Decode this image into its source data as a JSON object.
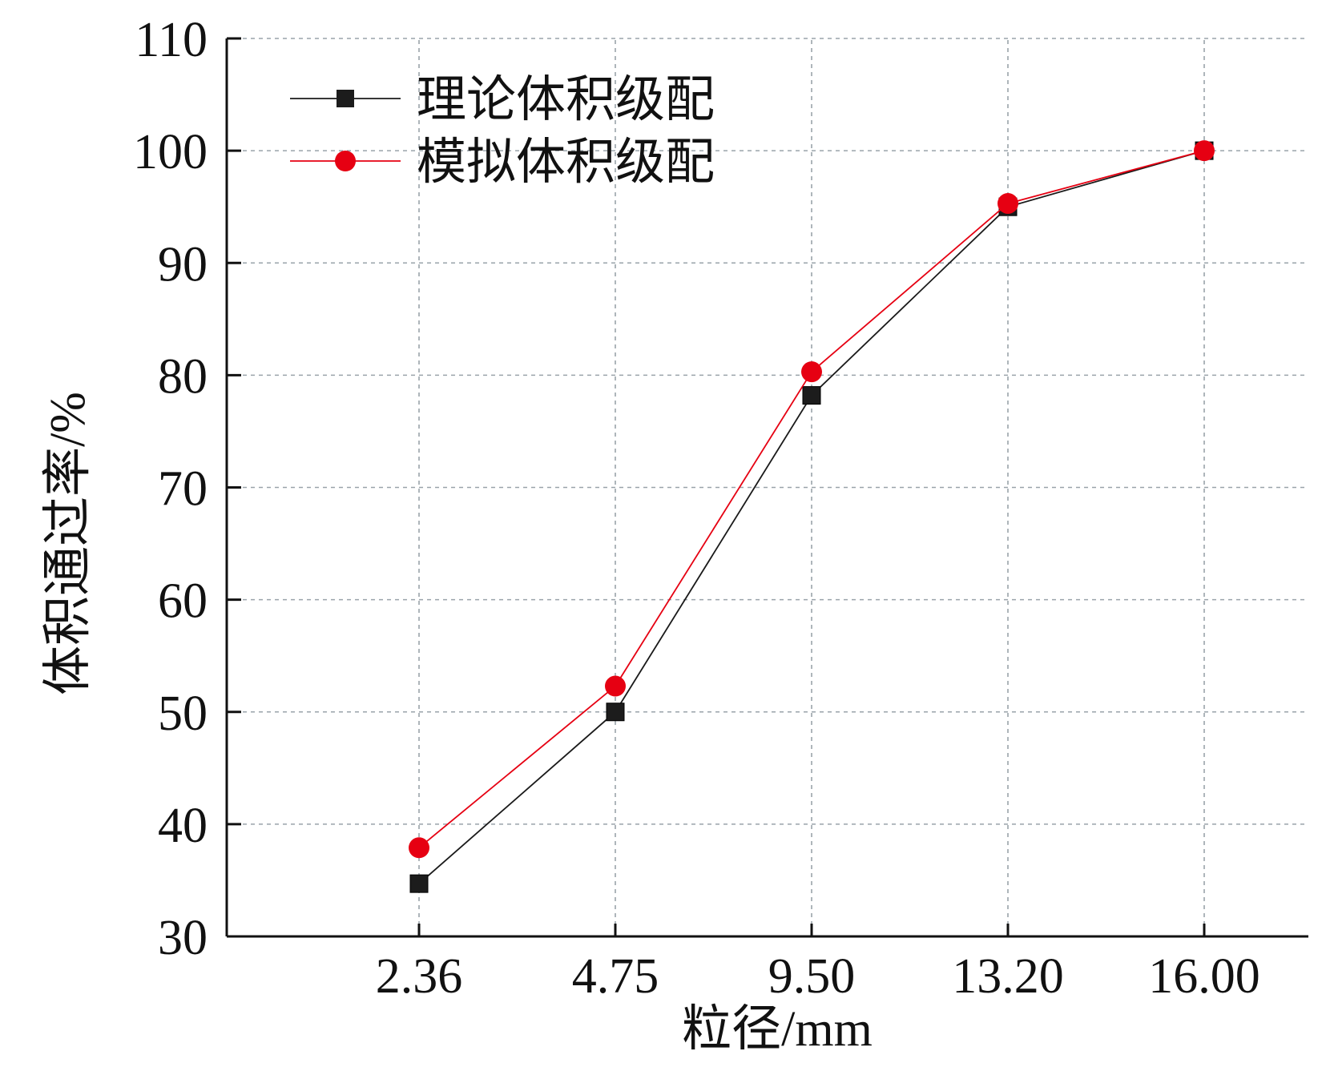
{
  "chart_data": {
    "type": "line",
    "title": "",
    "xlabel": "粒径/mm",
    "ylabel": "体积通过率/%",
    "categories": [
      "2.36",
      "4.75",
      "9.50",
      "13.20",
      "16.00"
    ],
    "ylim": [
      30,
      110
    ],
    "yticks": [
      "30",
      "40",
      "50",
      "60",
      "70",
      "80",
      "90",
      "100",
      "110"
    ],
    "grid": true,
    "legend_position": "top-left",
    "series": [
      {
        "name": "理论体积级配",
        "values": [
          34.7,
          50.0,
          78.2,
          95.0,
          100.0
        ],
        "color": "#1a1a1a",
        "marker": "square"
      },
      {
        "name": "模拟体积级配",
        "values": [
          37.9,
          52.3,
          80.3,
          95.3,
          100.0
        ],
        "color": "#e60012",
        "marker": "circle"
      }
    ]
  }
}
